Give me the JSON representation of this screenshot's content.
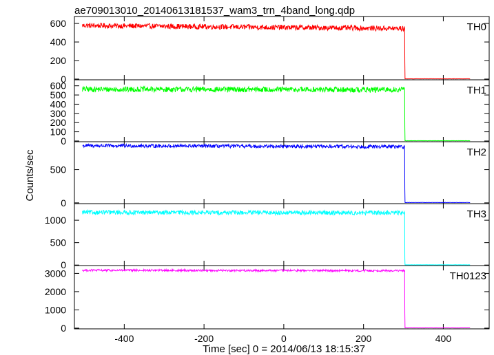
{
  "chart_data": {
    "type": "line",
    "title": "ae709013010_20140613181537_wam3_trn_4band_long.qdp",
    "xlabel": "Time [sec] 0 = 2014/06/13 18:15:37",
    "ylabel": "Counts/sec",
    "xlim": [
      -525,
      515
    ],
    "x_ticks": [
      "-400",
      "-200",
      "0",
      "200",
      "400"
    ],
    "x_tick_values": [
      -400,
      -200,
      0,
      200,
      400
    ],
    "grid": false,
    "bin_width_sec": 1,
    "data_start": -505,
    "drop_time": 303,
    "data_end": 467,
    "panels": [
      {
        "name": "TH0",
        "color": "#ff0000",
        "ylim": [
          -8,
          675
        ],
        "y_ticks": [
          "0",
          "200",
          "400",
          "600"
        ],
        "y_tick_values": [
          0,
          200,
          400,
          600
        ],
        "level_start": 578,
        "level_end": 545,
        "noise_amplitude": 28,
        "after_level": 3,
        "after_noise": 1.5,
        "transition_points": [
          [
            303,
            545
          ],
          [
            303.5,
            180
          ],
          [
            304,
            3
          ]
        ]
      },
      {
        "name": "TH1",
        "color": "#00ff00",
        "ylim": [
          -8,
          665
        ],
        "y_ticks": [
          "0",
          "100",
          "200",
          "300",
          "400",
          "500",
          "600"
        ],
        "y_tick_values": [
          0,
          100,
          200,
          300,
          400,
          500,
          600
        ],
        "level_start": 562,
        "level_end": 557,
        "noise_amplitude": 30,
        "after_level": 3,
        "after_noise": 1.5,
        "transition_points": [
          [
            303,
            560
          ],
          [
            303.5,
            150
          ],
          [
            304,
            3
          ]
        ]
      },
      {
        "name": "TH2",
        "color": "#0000ff",
        "ylim": [
          -12,
          920
        ],
        "y_ticks": [
          "0",
          "500"
        ],
        "y_tick_values": [
          0,
          500
        ],
        "level_start": 860,
        "level_end": 845,
        "noise_amplitude": 26,
        "after_level": 5,
        "after_noise": 2,
        "transition_points": [
          [
            303,
            845
          ],
          [
            303.5,
            200
          ],
          [
            304,
            5
          ]
        ]
      },
      {
        "name": "TH3",
        "color": "#00ffff",
        "ylim": [
          -12,
          1370
        ],
        "y_ticks": [
          "0",
          "500",
          "1000"
        ],
        "y_tick_values": [
          0,
          500,
          1000
        ],
        "level_start": 1175,
        "level_end": 1165,
        "noise_amplitude": 48,
        "after_level": 5,
        "after_noise": 2,
        "transition_points": [
          [
            303,
            1165
          ],
          [
            303.5,
            150
          ],
          [
            304,
            5
          ]
        ]
      },
      {
        "name": "TH0123",
        "color": "#ff00ff",
        "ylim": [
          -40,
          3430
        ],
        "y_ticks": [
          "0",
          "1000",
          "2000",
          "3000"
        ],
        "y_tick_values": [
          0,
          1000,
          2000,
          3000
        ],
        "level_start": 3170,
        "level_end": 3150,
        "noise_amplitude": 55,
        "after_level": 15,
        "after_noise": 4,
        "transition_points": [
          [
            303,
            3150
          ],
          [
            303.5,
            800
          ],
          [
            304,
            15
          ]
        ]
      }
    ]
  }
}
